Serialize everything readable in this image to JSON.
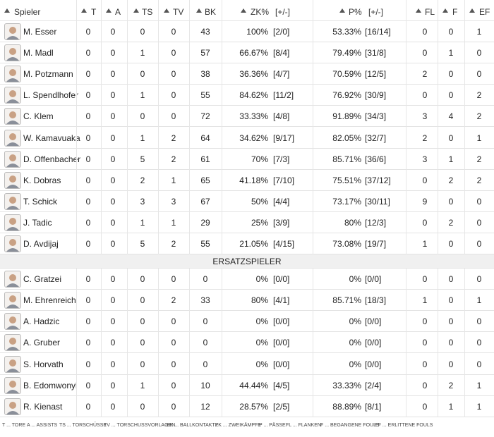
{
  "table": {
    "columns": [
      "Spieler",
      "T",
      "A",
      "TS",
      "TV",
      "BK",
      "ZK%",
      "[+/-]",
      "P%",
      "[+/-]",
      "FL",
      "F",
      "EF"
    ],
    "rows": [
      [
        "M. Esser",
        0,
        0,
        0,
        0,
        43,
        "100%",
        "[2/0]",
        "53.33%",
        "[16/14]",
        0,
        0,
        1
      ],
      [
        "M. Madl",
        0,
        0,
        1,
        0,
        57,
        "66.67%",
        "[8/4]",
        "79.49%",
        "[31/8]",
        0,
        1,
        0
      ],
      [
        "M. Potzmann",
        0,
        0,
        0,
        0,
        38,
        "36.36%",
        "[4/7]",
        "70.59%",
        "[12/5]",
        2,
        0,
        0
      ],
      [
        "L. Spendlhofer",
        0,
        0,
        1,
        0,
        55,
        "84.62%",
        "[11/2]",
        "76.92%",
        "[30/9]",
        0,
        0,
        2
      ],
      [
        "C. Klem",
        0,
        0,
        0,
        0,
        72,
        "33.33%",
        "[4/8]",
        "91.89%",
        "[34/3]",
        3,
        4,
        2
      ],
      [
        "W. Kamavuaka",
        0,
        0,
        1,
        2,
        64,
        "34.62%",
        "[9/17]",
        "82.05%",
        "[32/7]",
        2,
        0,
        1
      ],
      [
        "D. Offenbacher",
        0,
        0,
        5,
        2,
        61,
        "70%",
        "[7/3]",
        "85.71%",
        "[36/6]",
        3,
        1,
        2
      ],
      [
        "K. Dobras",
        0,
        0,
        2,
        1,
        65,
        "41.18%",
        "[7/10]",
        "75.51%",
        "[37/12]",
        0,
        2,
        2
      ],
      [
        "T. Schick",
        0,
        0,
        3,
        3,
        67,
        "50%",
        "[4/4]",
        "73.17%",
        "[30/11]",
        9,
        0,
        0
      ],
      [
        "J. Tadic",
        0,
        0,
        1,
        1,
        29,
        "25%",
        "[3/9]",
        "80%",
        "[12/3]",
        0,
        2,
        0
      ],
      [
        "D. Avdijaj",
        0,
        0,
        5,
        2,
        55,
        "21.05%",
        "[4/15]",
        "73.08%",
        "[19/7]",
        1,
        0,
        0
      ]
    ],
    "section": "ERSATZSPIELER",
    "sub_rows": [
      [
        "C. Gratzei",
        0,
        0,
        0,
        0,
        0,
        "0%",
        "[0/0]",
        "0%",
        "[0/0]",
        0,
        0,
        0
      ],
      [
        "M. Ehrenreich",
        0,
        0,
        0,
        2,
        33,
        "80%",
        "[4/1]",
        "85.71%",
        "[18/3]",
        1,
        0,
        1
      ],
      [
        "A. Hadzic",
        0,
        0,
        0,
        0,
        0,
        "0%",
        "[0/0]",
        "0%",
        "[0/0]",
        0,
        0,
        0
      ],
      [
        "A. Gruber",
        0,
        0,
        0,
        0,
        0,
        "0%",
        "[0/0]",
        "0%",
        "[0/0]",
        0,
        0,
        0
      ],
      [
        "S. Horvath",
        0,
        0,
        0,
        0,
        0,
        "0%",
        "[0/0]",
        "0%",
        "[0/0]",
        0,
        0,
        0
      ],
      [
        "B. Edomwonyi",
        0,
        0,
        1,
        0,
        10,
        "44.44%",
        "[4/5]",
        "33.33%",
        "[2/4]",
        0,
        2,
        1
      ],
      [
        "R. Kienast",
        0,
        0,
        0,
        0,
        12,
        "28.57%",
        "[2/5]",
        "88.89%",
        "[8/1]",
        0,
        1,
        1
      ]
    ]
  },
  "legend": [
    "T ... TORE",
    "A ... ASSISTS",
    "TS ... TORSCHÜSSE",
    "TV ... TORSCHUSSVORLAGEN",
    "BK ... BALLKONTAKTE",
    "ZK ... ZWEIKÄMPFE",
    "P ... PÄSSE",
    "FL ... FLANKEN",
    "F ... BEGANGENE FOULS",
    "EF ... ERLITTENE FOULS"
  ]
}
